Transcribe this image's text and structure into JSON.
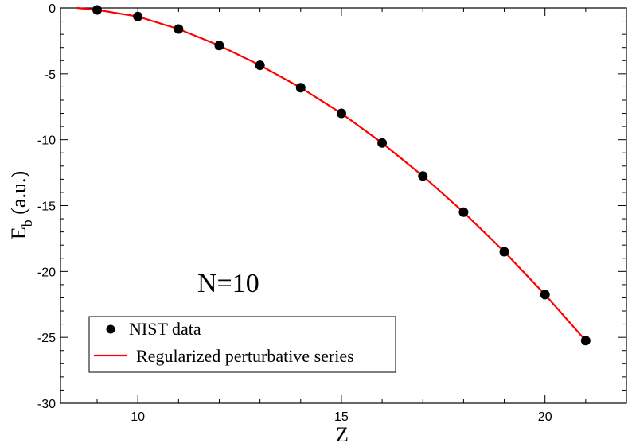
{
  "chart_data": {
    "type": "scatter",
    "xlabel": "Z",
    "ylabel_main": "E",
    "ylabel_sub": "b",
    "ylabel_unit": " (a.u.)",
    "xlim": [
      8.1,
      22
    ],
    "ylim": [
      -30,
      0
    ],
    "xticks": [
      10,
      15,
      20
    ],
    "yticks": [
      0,
      -5,
      -10,
      -15,
      -20,
      -25,
      -30
    ],
    "xtick_labels": [
      "10",
      "15",
      "20"
    ],
    "ytick_labels": [
      "0",
      "-5",
      "-10",
      "-15",
      "-20",
      "-25",
      "-30"
    ],
    "grid": false,
    "annotation": "N=10",
    "legend_position": "bottom-left",
    "series": [
      {
        "name": "NIST data",
        "kind": "markers",
        "color": "#000000",
        "x": [
          9,
          10,
          11,
          12,
          13,
          14,
          15,
          16,
          17,
          18,
          19,
          20,
          21
        ],
        "y": [
          -0.15,
          -0.65,
          -1.6,
          -2.85,
          -4.35,
          -6.05,
          -8.0,
          -10.25,
          -12.75,
          -15.5,
          -18.5,
          -21.75,
          -25.25
        ]
      },
      {
        "name": "Regularized perturbative series",
        "kind": "line",
        "color": "#ff0000",
        "x": [
          8.5,
          9,
          10,
          11,
          12,
          13,
          14,
          15,
          16,
          17,
          18,
          19,
          20,
          21
        ],
        "y": [
          0.0,
          -0.15,
          -0.65,
          -1.6,
          -2.85,
          -4.35,
          -6.05,
          -8.0,
          -10.25,
          -12.75,
          -15.5,
          -18.5,
          -21.75,
          -25.25
        ]
      }
    ]
  }
}
